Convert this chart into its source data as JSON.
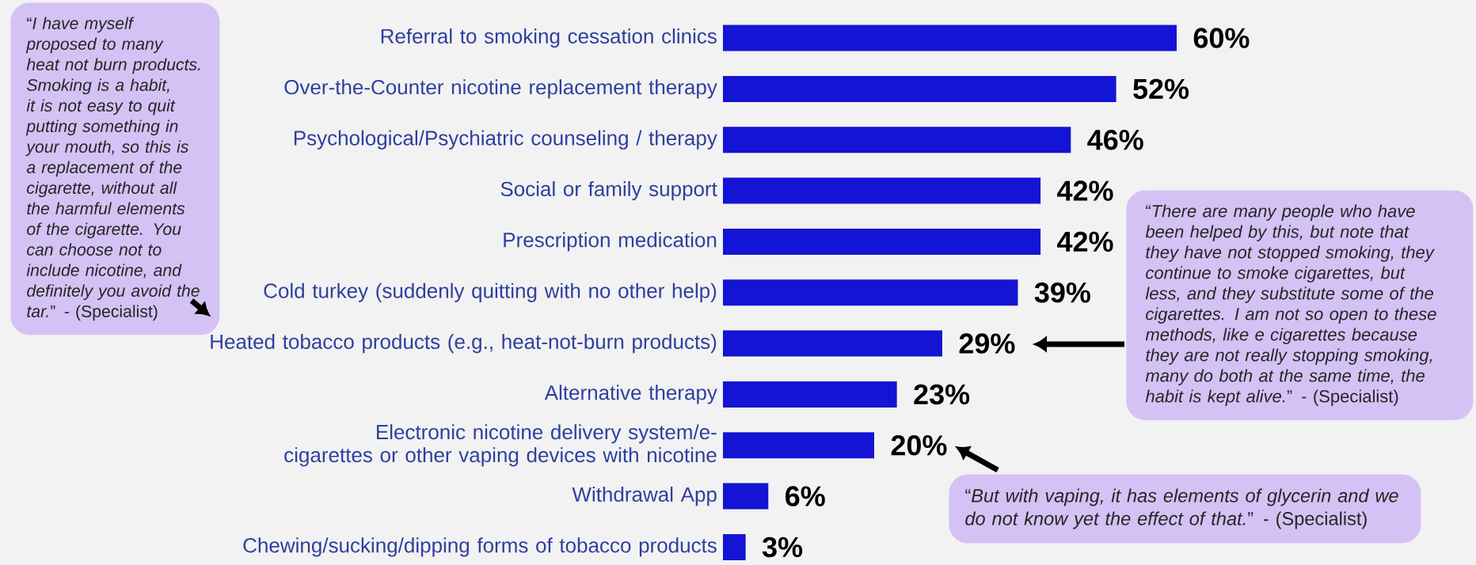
{
  "chart_data": {
    "type": "bar",
    "orientation": "horizontal",
    "color": "#1414d4",
    "categories": [
      "Referral to smoking cessation clinics",
      "Over-the-Counter nicotine replacement therapy",
      "Psychological/Psychiatric counseling / therapy",
      "Social or family support",
      "Prescription medication",
      "Cold turkey (suddenly quitting with no other help)",
      "Heated tobacco products (e.g., heat-not-burn products)",
      "Alternative therapy",
      "Electronic nicotine delivery system/e-cigarettes or other vaping devices with nicotine",
      "Withdrawal App",
      "Chewing/sucking/dipping forms of tobacco products"
    ],
    "values": [
      60,
      52,
      46,
      42,
      42,
      39,
      29,
      23,
      20,
      6,
      3
    ],
    "value_labels": [
      "60%",
      "52%",
      "46%",
      "42%",
      "42%",
      "39%",
      "29%",
      "23%",
      "20%",
      "6%",
      "3%"
    ],
    "annotations": [
      "“*I have myself proposed to many heat not burn products. Smoking is a habit, it is not easy to quit putting something in your mouth, so this is a replacement of the cigarette, without all the harmful elements of the cigarette. You can choose not to include nicotine, and definitely you avoid the tar.*” - (Specialist)",
      "“*There are many people who have been helped by this, but note that they have not stopped smoking, they continue to smoke cigarettes, but less, and they substitute some of the cigarettes. I am not so open to these methods, like e cigarettes because they are not really stopping smoking, many do both at the same time, the habit is kept alive.*” - (Specialist)",
      "“*But with vaping, it has elements of glycerin and we do not know yet the effect of that.*” - (Specialist)"
    ]
  }
}
